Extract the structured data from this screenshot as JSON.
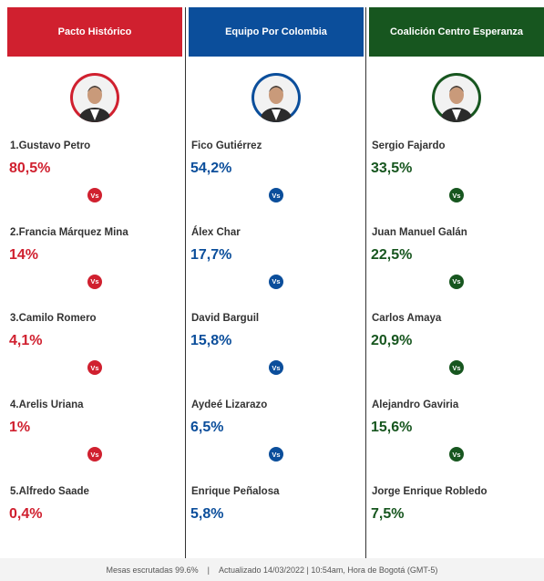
{
  "columns": [
    {
      "title": "Pacto Histórico",
      "color": "#d0202f",
      "candidates": [
        {
          "name": "1.Gustavo Petro",
          "percent": "80,5%"
        },
        {
          "name": "2.Francia Márquez Mina",
          "percent": "14%"
        },
        {
          "name": "3.Camilo Romero",
          "percent": "4,1%"
        },
        {
          "name": "4.Arelis Uriana",
          "percent": "1%"
        },
        {
          "name": "5.Alfredo Saade",
          "percent": "0,4%"
        }
      ]
    },
    {
      "title": "Equipo Por Colombia",
      "color": "#0b4e9b",
      "candidates": [
        {
          "name": "Fico Gutiérrez",
          "percent": "54,2%"
        },
        {
          "name": "Álex Char",
          "percent": "17,7%"
        },
        {
          "name": "David Barguil",
          "percent": "15,8%"
        },
        {
          "name": "Aydeé Lizarazo",
          "percent": "6,5%"
        },
        {
          "name": "Enrique Peñalosa",
          "percent": "5,8%"
        }
      ]
    },
    {
      "title": "Coalición Centro Esperanza",
      "color": "#17561f",
      "candidates": [
        {
          "name": "Sergio Fajardo",
          "percent": "33,5%"
        },
        {
          "name": "Juan Manuel Galán",
          "percent": "22,5%"
        },
        {
          "name": "Carlos Amaya",
          "percent": "20,9%"
        },
        {
          "name": "Alejandro Gaviria",
          "percent": "15,6%"
        },
        {
          "name": "Jorge Enrique Robledo",
          "percent": "7,5%"
        }
      ]
    }
  ],
  "vs_label": "Vs",
  "footer": {
    "left": "Mesas escrutadas 99.6%",
    "separator": "|",
    "right": "Actualizado 14/03/2022 | 10:54am, Hora de Bogotá (GMT-5)"
  }
}
